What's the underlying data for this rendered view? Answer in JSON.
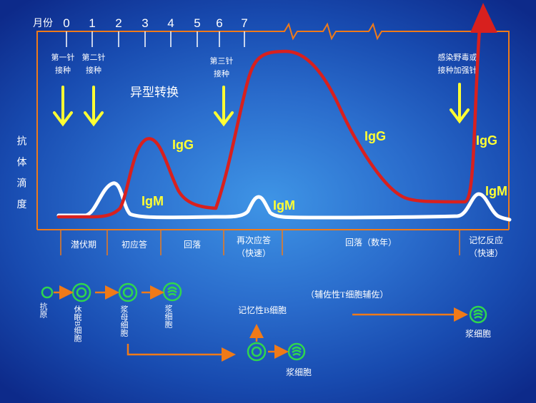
{
  "axis": {
    "month_label": "月份",
    "months": [
      "0",
      "1",
      "2",
      "3",
      "4",
      "5",
      "6",
      "7"
    ],
    "ylabel": "抗 体 滴 度"
  },
  "vaccines": {
    "first": [
      "第一针",
      "接种"
    ],
    "second": [
      "第二针",
      "接种"
    ],
    "third": [
      "第三针",
      "接种"
    ],
    "booster": [
      "感染野毒或",
      "接种加强针"
    ]
  },
  "class_switch": "异型转换",
  "curve_labels": {
    "igg": "IgG",
    "igm": "IgM"
  },
  "phases": {
    "latent": "潜伏期",
    "primary": "初应答",
    "decline1": "回落",
    "secondary": [
      "再次应答",
      "（快速）"
    ],
    "decline2": "回落（数年）",
    "memory": [
      "记忆反应",
      "（快速）"
    ]
  },
  "cells": {
    "antigen": "抗原",
    "resting_b": "休眠B细胞",
    "plasmablast": "浆母细胞",
    "plasma": "浆细胞",
    "memory_b": "记忆性B细胞",
    "t_help": "（辅佐性T细胞辅佐）"
  },
  "colors": {
    "igg_curve": "#d8201e",
    "igm_curve": "#ffffff",
    "labels": "#ffff33",
    "arrows": "#f07a18",
    "cell_ring": "#2fd64e"
  }
}
